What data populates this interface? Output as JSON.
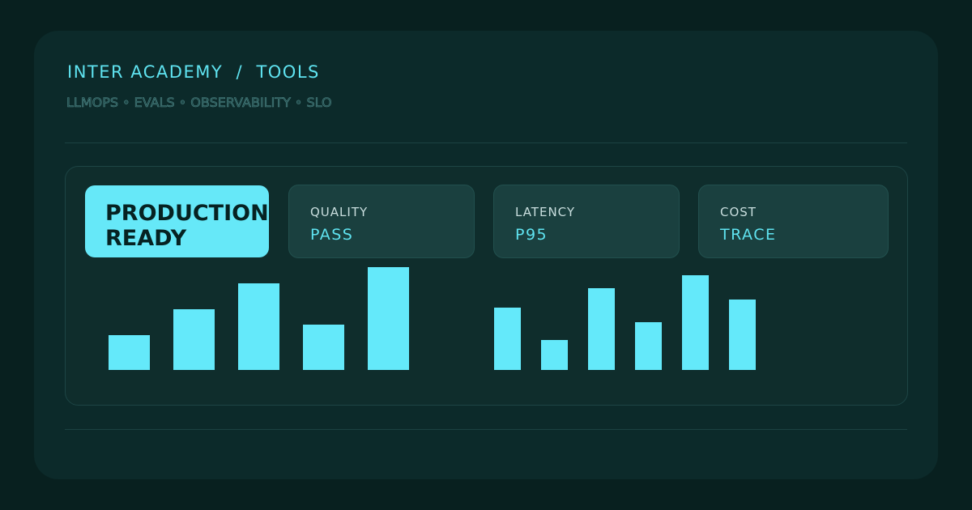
{
  "header": {
    "title": "INTER ACADEMY  /  TOOLS",
    "subtitle": "LLMOPS • EVALS • OBSERVABILITY • SLO"
  },
  "badge": {
    "lines": [
      "PRODUCTION",
      "READY"
    ]
  },
  "cards": [
    {
      "label": "QUALITY",
      "value": "PASS"
    },
    {
      "label": "LATENCY",
      "value": "P95"
    },
    {
      "label": "COST",
      "value": "TRACE"
    }
  ]
}
